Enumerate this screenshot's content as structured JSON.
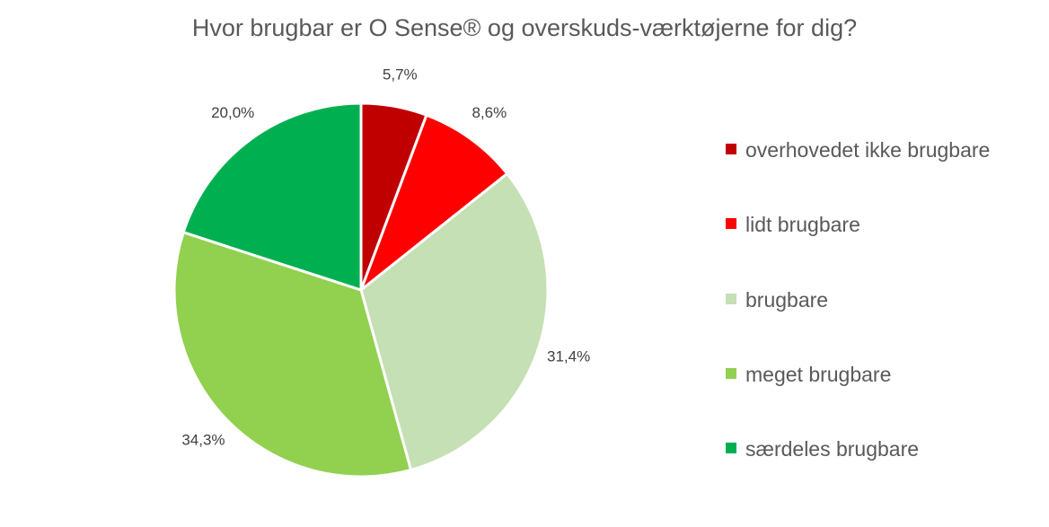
{
  "chart_data": {
    "type": "pie",
    "title": "Hvor brugbar er O Sense® og overskuds-værktøjerne for dig?",
    "categories": [
      "overhovedet ikke brugbare",
      "lidt brugbare",
      "brugbare",
      "meget brugbare",
      "særdeles brugbare"
    ],
    "values": [
      5.7,
      8.6,
      31.4,
      34.3,
      20.0
    ],
    "data_labels": [
      "5,7%",
      "8,6%",
      "31,4%",
      "34,3%",
      "20,0%"
    ],
    "colors": [
      "#c00000",
      "#ff0000",
      "#c5e0b4",
      "#92d050",
      "#00b050"
    ],
    "legend_position": "right",
    "start_angle": "12 o'clock, clockwise"
  }
}
